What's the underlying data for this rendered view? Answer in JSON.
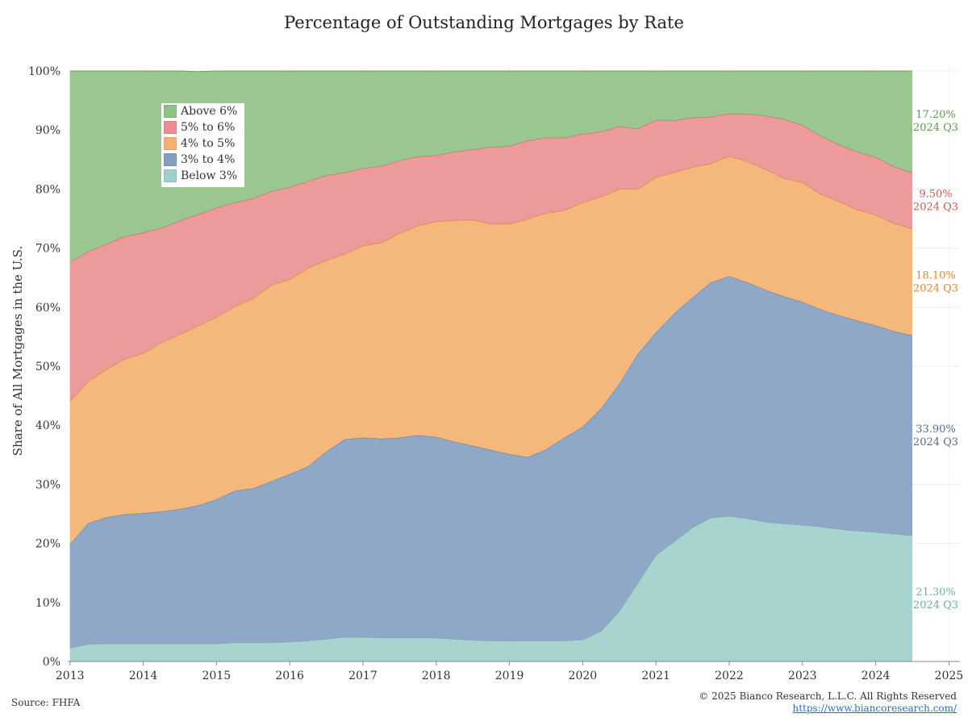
{
  "source": "Source: FHFA",
  "copyright": "© 2025 Bianco Research, L.L.C. All Rights Reserved",
  "website": "https://www.biancoresearch.com/",
  "chart_data": {
    "type": "area",
    "stacked": true,
    "title": "Percentage of Outstanding Mortgages by Rate",
    "xlabel": "",
    "ylabel": "Share of All Mortgages in the U.S.",
    "xlim": [
      2012.97,
      2025.15
    ],
    "ylim": [
      0,
      100
    ],
    "x_ticks": [
      2013,
      2014,
      2015,
      2016,
      2017,
      2018,
      2019,
      2020,
      2021,
      2022,
      2023,
      2024,
      2025
    ],
    "y_ticks": [
      0,
      10,
      20,
      30,
      40,
      50,
      60,
      70,
      80,
      90,
      100
    ],
    "y_tick_labels": [
      "0%",
      "10%",
      "20%",
      "30%",
      "40%",
      "50%",
      "60%",
      "70%",
      "80%",
      "90%",
      "100%"
    ],
    "grid": true,
    "legend_position": "top-left",
    "x": [
      2013.0,
      2013.25,
      2013.5,
      2013.75,
      2014.0,
      2014.25,
      2014.5,
      2014.75,
      2015.0,
      2015.25,
      2015.5,
      2015.75,
      2016.0,
      2016.25,
      2016.5,
      2016.75,
      2017.0,
      2017.25,
      2017.5,
      2017.75,
      2018.0,
      2018.25,
      2018.5,
      2018.75,
      2019.0,
      2019.25,
      2019.5,
      2019.75,
      2020.0,
      2020.25,
      2020.5,
      2020.75,
      2021.0,
      2021.25,
      2021.5,
      2021.75,
      2022.0,
      2022.25,
      2022.5,
      2022.75,
      2023.0,
      2023.25,
      2023.5,
      2023.75,
      2024.0,
      2024.25,
      2024.5
    ],
    "series": [
      {
        "name": "Below 3%",
        "color": "#9fcfca",
        "line": "#7fb9b3",
        "values": [
          2.3,
          2.9,
          3.0,
          3.0,
          3.0,
          3.0,
          3.0,
          3.0,
          3.0,
          3.2,
          3.2,
          3.2,
          3.3,
          3.5,
          3.8,
          4.1,
          4.1,
          4.0,
          4.0,
          4.0,
          4.0,
          3.8,
          3.6,
          3.5,
          3.5,
          3.5,
          3.5,
          3.5,
          3.7,
          5.1,
          8.5,
          13.2,
          18.0,
          20.3,
          22.7,
          24.3,
          24.6,
          24.2,
          23.6,
          23.3,
          23.1,
          22.8,
          22.4,
          22.1,
          21.9,
          21.6,
          21.3
        ]
      },
      {
        "name": "3% to 4%",
        "color": "#849ec1",
        "line": "#5f7fa8",
        "values": [
          17.5,
          20.5,
          21.4,
          21.9,
          22.1,
          22.4,
          22.8,
          23.4,
          24.4,
          25.7,
          26.1,
          27.3,
          28.4,
          29.5,
          31.7,
          33.5,
          33.8,
          33.7,
          33.9,
          34.3,
          34.0,
          33.4,
          32.9,
          32.3,
          31.6,
          31.1,
          32.4,
          34.4,
          36.0,
          37.7,
          38.5,
          38.8,
          37.7,
          38.6,
          38.9,
          39.9,
          40.6,
          40.0,
          39.3,
          38.5,
          37.8,
          36.8,
          36.2,
          35.6,
          35.0,
          34.3,
          33.9
        ]
      },
      {
        "name": "4% to 5%",
        "color": "#f3b06e",
        "line": "#d48a45",
        "values": [
          24.3,
          24.0,
          25.1,
          26.3,
          27.1,
          28.6,
          29.6,
          30.4,
          30.9,
          31.2,
          32.2,
          33.2,
          33.0,
          33.6,
          32.4,
          31.4,
          32.5,
          33.2,
          34.6,
          35.5,
          36.5,
          37.5,
          38.3,
          38.3,
          39.0,
          40.3,
          40.0,
          38.5,
          38.0,
          35.9,
          33.0,
          28.0,
          26.3,
          23.9,
          22.1,
          20.1,
          20.4,
          20.5,
          20.4,
          20.0,
          20.2,
          19.5,
          19.3,
          18.8,
          18.7,
          18.3,
          18.1
        ]
      },
      {
        "name": "5% to 6%",
        "color": "#ea8f8f",
        "line": "#cf6a6a",
        "values": [
          23.5,
          22.0,
          21.2,
          20.8,
          20.4,
          19.4,
          19.2,
          18.9,
          18.5,
          17.6,
          16.9,
          15.9,
          15.6,
          14.7,
          14.4,
          13.8,
          13.1,
          13.0,
          12.3,
          11.7,
          11.2,
          11.6,
          11.9,
          13.0,
          13.2,
          13.3,
          12.8,
          12.3,
          11.6,
          11.0,
          10.6,
          10.2,
          9.7,
          8.8,
          8.4,
          7.9,
          7.2,
          8.0,
          9.1,
          10.0,
          9.7,
          9.9,
          9.6,
          9.8,
          9.8,
          9.6,
          9.5
        ]
      },
      {
        "name": "Above 6%",
        "color": "#8fc084",
        "line": "#6aa25e",
        "values": [
          32.4,
          30.6,
          29.3,
          28.0,
          27.4,
          26.6,
          25.4,
          24.2,
          23.2,
          22.3,
          21.6,
          20.4,
          19.7,
          18.7,
          17.7,
          17.2,
          16.5,
          16.1,
          15.2,
          14.5,
          14.3,
          13.7,
          13.3,
          12.9,
          12.7,
          11.8,
          11.3,
          11.3,
          10.7,
          10.3,
          9.4,
          9.8,
          8.3,
          8.4,
          7.9,
          7.8,
          7.2,
          7.3,
          7.6,
          8.2,
          9.2,
          11.0,
          12.5,
          13.7,
          14.6,
          16.2,
          17.2
        ]
      }
    ],
    "end_labels": [
      {
        "series": "Above 6%",
        "value": "17.20%",
        "period": "2024 Q3",
        "color": "#5e9a52"
      },
      {
        "series": "5% to 6%",
        "value": "9.50%",
        "period": "2024 Q3",
        "color": "#cf5757"
      },
      {
        "series": "4% to 5%",
        "value": "18.10%",
        "period": "2024 Q3",
        "color": "#d9853a"
      },
      {
        "series": "3% to 4%",
        "value": "33.90%",
        "period": "2024 Q3",
        "color": "#4e6e98"
      },
      {
        "series": "Below 3%",
        "value": "21.30%",
        "period": "2024 Q3",
        "color": "#6fb0aa"
      }
    ]
  }
}
